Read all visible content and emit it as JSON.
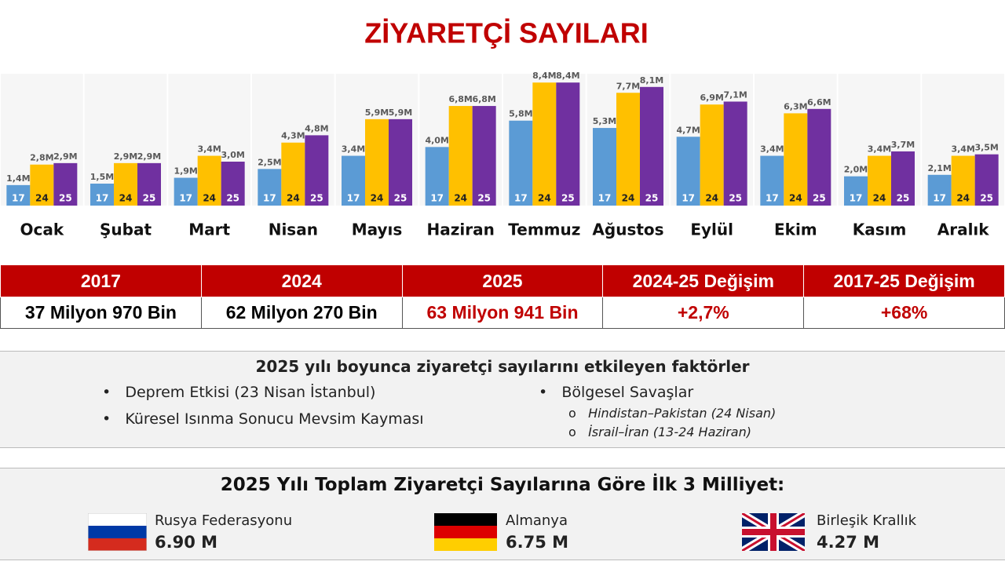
{
  "chart_data": {
    "type": "bar",
    "title": "ZİYARETÇİ SAYILARI",
    "categories": [
      "Ocak",
      "Şubat",
      "Mart",
      "Nisan",
      "Mayıs",
      "Haziran",
      "Temmuz",
      "Ağustos",
      "Eylül",
      "Ekim",
      "Kasım",
      "Aralık"
    ],
    "series": [
      {
        "name": "17",
        "color": "#5b9bd5",
        "values": [
          1.4,
          1.5,
          1.9,
          2.5,
          3.4,
          4.0,
          5.8,
          5.3,
          4.7,
          3.4,
          2.0,
          2.1
        ],
        "value_labels": [
          "1,4M",
          "1,5M",
          "1,9M",
          "2,5M",
          "3,4M",
          "4,0M",
          "5,8M",
          "5,3M",
          "4,7M",
          "3,4M",
          "2,0M",
          "2,1M"
        ]
      },
      {
        "name": "24",
        "color": "#ffc000",
        "values": [
          2.8,
          2.9,
          3.4,
          4.3,
          5.9,
          6.8,
          8.4,
          7.7,
          6.9,
          6.3,
          3.4,
          3.4
        ],
        "value_labels": [
          "2,8M",
          "2,9M",
          "3,4M",
          "4,3M",
          "5,9M",
          "6,8M",
          "8,4M",
          "7,7M",
          "6,9M",
          "6,3M",
          "3,4M",
          "3,4M"
        ]
      },
      {
        "name": "25",
        "color": "#7030a0",
        "values": [
          2.9,
          2.9,
          3.0,
          4.8,
          5.9,
          6.8,
          8.4,
          8.1,
          7.1,
          6.6,
          3.7,
          3.5
        ],
        "value_labels": [
          "2,9M",
          "2,9M",
          "3,0M",
          "4,8M",
          "5,9M",
          "6,8M",
          "8,4M",
          "8,1M",
          "7,1M",
          "6,6M",
          "3,7M",
          "3,5M"
        ]
      }
    ],
    "ylim": [
      0,
      9
    ]
  },
  "table": {
    "headers": [
      "2017",
      "2024",
      "2025",
      "2024-25 Değişim",
      "2017-25 Değişim"
    ],
    "rows": [
      [
        "37 Milyon 970 Bin",
        "62 Milyon 270 Bin",
        "63 Milyon 941 Bin",
        "+2,7%",
        "+68%"
      ]
    ]
  },
  "factors": {
    "title": "2025 yılı boyunca ziyaretçi sayılarını etkileyen faktörler",
    "left": [
      "Deprem Etkisi (23 Nisan İstanbul)",
      "Küresel Isınma Sonucu Mevsim Kayması"
    ],
    "right": {
      "title": "Bölgesel Savaşlar",
      "items": [
        "Hindistan–Pakistan (24 Nisan)",
        "İsrail–İran  (13-24 Haziran)"
      ]
    }
  },
  "nationalities": {
    "title": "2025 Yılı Toplam Ziyaretçi Sayılarına Göre İlk 3 Milliyet:",
    "items": [
      {
        "name": "Rusya Federasyonu",
        "value": "6.90 M"
      },
      {
        "name": "Almanya",
        "value": "6.75 M"
      },
      {
        "name": "Birleşik Krallık",
        "value": "4.27 M"
      }
    ]
  }
}
